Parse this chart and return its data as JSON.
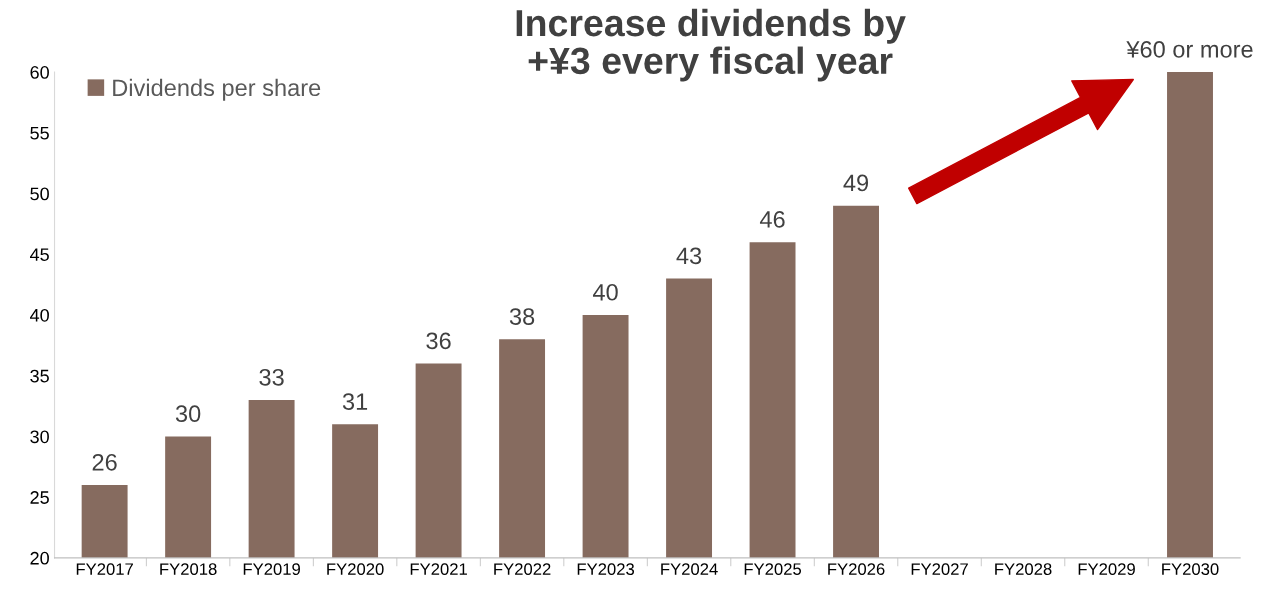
{
  "chart_data": {
    "type": "bar",
    "title": "Increase dividends by\n+¥3 every fiscal year",
    "categories": [
      "FY2017",
      "FY2018",
      "FY2019",
      "FY2020",
      "FY2021",
      "FY2022",
      "FY2023",
      "FY2024",
      "FY2025",
      "FY2026",
      "FY2027",
      "FY2028",
      "FY2029",
      "FY2030"
    ],
    "series": [
      {
        "name": "Dividends per share",
        "color": "#866b5f",
        "values": [
          26,
          30,
          33,
          31,
          36,
          38,
          40,
          43,
          46,
          49,
          null,
          null,
          null,
          60
        ],
        "value_labels": [
          "26",
          "30",
          "33",
          "31",
          "36",
          "38",
          "40",
          "43",
          "46",
          "49",
          null,
          null,
          null,
          "¥60 or more"
        ]
      }
    ],
    "ylim": [
      20,
      60
    ],
    "yticks": [
      20,
      25,
      30,
      35,
      40,
      45,
      50,
      55,
      60
    ],
    "grid": false,
    "legend": "top left"
  }
}
